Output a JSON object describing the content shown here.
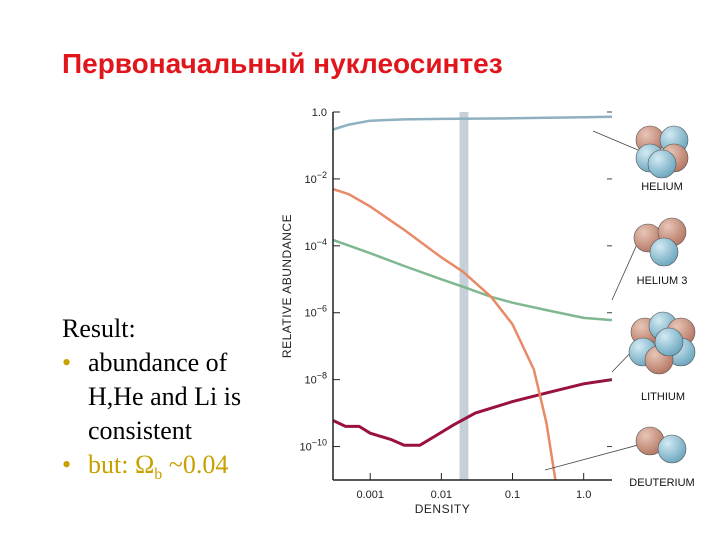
{
  "slide": {
    "title": "Первоначальный нуклеосинтез",
    "result_label": "Result:",
    "bullets": [
      {
        "bullet": "•",
        "lines": [
          "abundance of",
          "H,He and Li is",
          "consistent"
        ]
      },
      {
        "bullet": "•",
        "prefix": "but: ",
        "symbol": "Ω",
        "subscript": "b",
        "suffix": " ~0.04"
      }
    ],
    "colors": {
      "title": "#e0161c",
      "bullet": "#c9a000"
    }
  },
  "chart_data": {
    "type": "line",
    "xlabel": "DENSITY",
    "ylabel": "RELATIVE ABUNDANCE",
    "xscale": "log",
    "yscale": "log",
    "xlim": [
      0.0003,
      2.5
    ],
    "ylim": [
      1e-11,
      1.0
    ],
    "x_ticks": [
      0.001,
      0.01,
      0.1,
      1.0
    ],
    "x_tick_labels": [
      "0.001",
      "0.01",
      "0.1",
      "1.0"
    ],
    "y_ticks": [
      1.0,
      0.01,
      0.0001,
      1e-06,
      1e-08,
      1e-10
    ],
    "y_tick_labels": [
      {
        "base": "1.0",
        "exp": ""
      },
      {
        "base": "10",
        "exp": "−2"
      },
      {
        "base": "10",
        "exp": "−4"
      },
      {
        "base": "10",
        "exp": "−6"
      },
      {
        "base": "10",
        "exp": "−8"
      },
      {
        "base": "10",
        "exp": "−10"
      }
    ],
    "highlight_band": {
      "x_from": 0.018,
      "x_to": 0.024,
      "color": "#c5d0d8"
    },
    "series": [
      {
        "label": "HELIUM",
        "color": "#8fb0c0",
        "points": [
          [
            0.0003,
            0.3
          ],
          [
            0.0005,
            0.42
          ],
          [
            0.001,
            0.55
          ],
          [
            0.003,
            0.6
          ],
          [
            0.01,
            0.62
          ],
          [
            0.1,
            0.65
          ],
          [
            1.0,
            0.7
          ],
          [
            2.5,
            0.72
          ]
        ]
      },
      {
        "label": "HELIUM 3",
        "color": "#7fb890",
        "points": [
          [
            0.0003,
            0.00015
          ],
          [
            0.001,
            6e-05
          ],
          [
            0.003,
            2.5e-05
          ],
          [
            0.01,
            1e-05
          ],
          [
            0.02,
            6e-06
          ],
          [
            0.05,
            3e-06
          ],
          [
            0.1,
            2e-06
          ],
          [
            0.3,
            1.2e-06
          ],
          [
            1.0,
            7e-07
          ],
          [
            2.5,
            6e-07
          ]
        ]
      },
      {
        "label": "LITHIUM",
        "color": "#9a1040",
        "points": [
          [
            0.0003,
            6e-10
          ],
          [
            0.00045,
            4e-10
          ],
          [
            0.0007,
            4e-10
          ],
          [
            0.001,
            2.5e-10
          ],
          [
            0.002,
            1.6e-10
          ],
          [
            0.003,
            1.1e-10
          ],
          [
            0.005,
            1.1e-10
          ],
          [
            0.008,
            2e-10
          ],
          [
            0.015,
            4.5e-10
          ],
          [
            0.03,
            1e-09
          ],
          [
            0.1,
            2.2e-09
          ],
          [
            0.3,
            4e-09
          ],
          [
            1.0,
            7.5e-09
          ],
          [
            2.5,
            1e-08
          ]
        ]
      },
      {
        "label": "DEUTERIUM",
        "color": "#e88a68",
        "points": [
          [
            0.0003,
            0.005
          ],
          [
            0.0005,
            0.0035
          ],
          [
            0.001,
            0.0015
          ],
          [
            0.003,
            0.0003
          ],
          [
            0.01,
            4.5e-05
          ],
          [
            0.02,
            1.7e-05
          ],
          [
            0.05,
            3e-06
          ],
          [
            0.1,
            4.5e-07
          ],
          [
            0.2,
            2e-08
          ],
          [
            0.3,
            5e-10
          ],
          [
            0.4,
            1e-11
          ]
        ]
      }
    ]
  }
}
